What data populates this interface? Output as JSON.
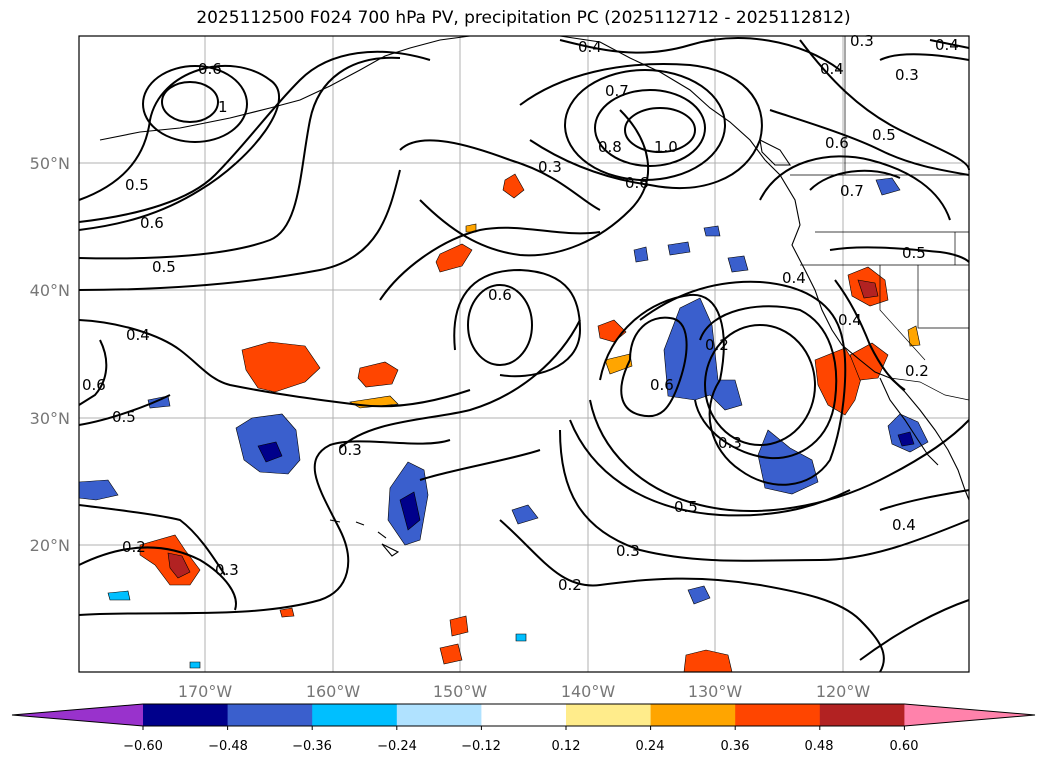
{
  "title": "2025112500 F024 700 hPa PV, precipitation PC (2025112712 - 2025112812)",
  "lat_ticks": [
    "50°N",
    "40°N",
    "30°N",
    "20°N"
  ],
  "lon_ticks": [
    "170°W",
    "160°W",
    "150°W",
    "140°W",
    "130°W",
    "120°W"
  ],
  "colorbar": {
    "ticks": [
      "−0.60",
      "−0.48",
      "−0.36",
      "−0.24",
      "−0.12",
      "0.12",
      "0.24",
      "0.36",
      "0.48",
      "0.60"
    ],
    "colors": [
      "#9932CC",
      "#00008B",
      "#3A5FCD",
      "#00BFFF",
      "#B0E2FF",
      "#FFFFFF",
      "#FFEC8B",
      "#FFA500",
      "#FF4500",
      "#B22222",
      "#FF82AB"
    ]
  },
  "contour_labels": [
    "0.6",
    "1",
    "0.5",
    "0.6",
    "0.5",
    "0.4",
    "0.6",
    "0.5",
    "0.3",
    "0.4",
    "0.7",
    "0.8",
    "1.0",
    "0.6",
    "0.3",
    "0.6",
    "0.2",
    "0.3",
    "0.5",
    "0.3",
    "0.2",
    "0.2",
    "0.3",
    "0.4",
    "0.4",
    "0.3",
    "0.4",
    "0.6",
    "0.5",
    "0.7",
    "0.5",
    "0.4",
    "0.4",
    "0.3",
    "0.6",
    "0.2"
  ]
}
